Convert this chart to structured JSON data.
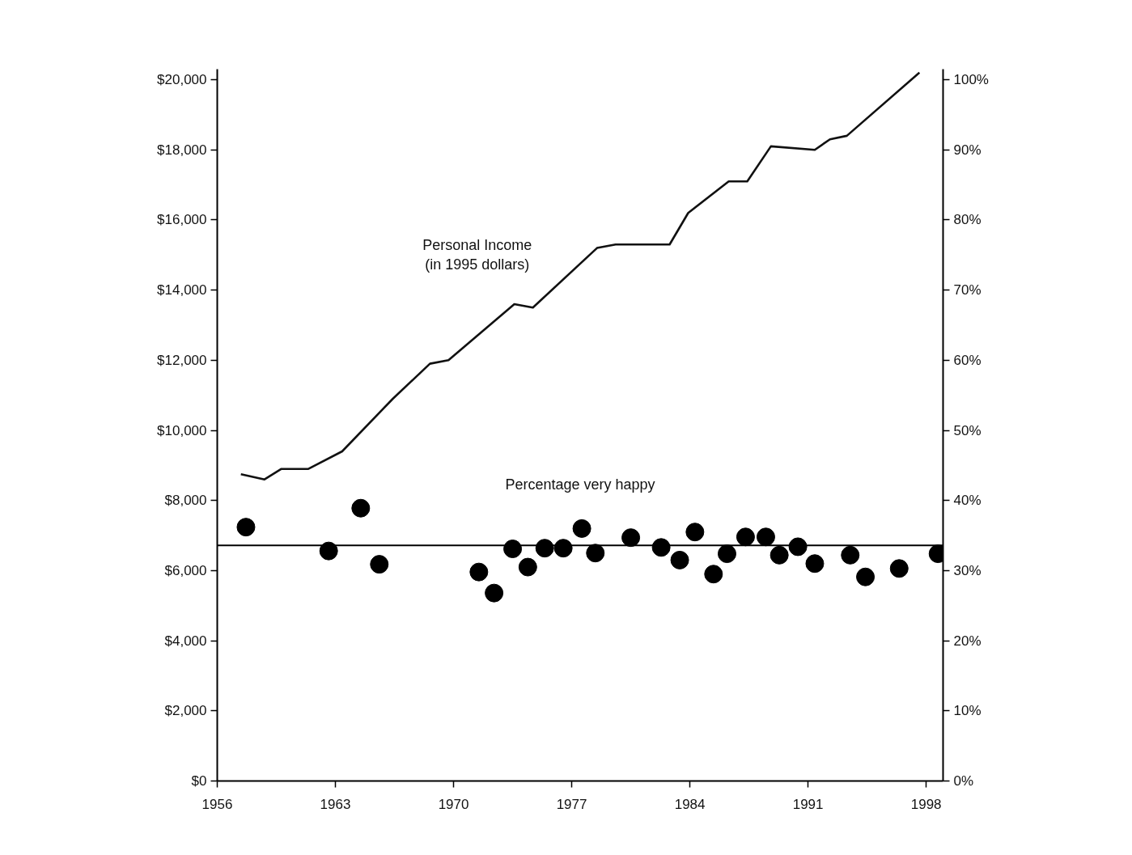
{
  "chart_data": {
    "type": "line",
    "xlim": [
      1956,
      1999
    ],
    "xticks": [
      1956,
      1963,
      1970,
      1977,
      1984,
      1991,
      1998
    ],
    "ylim": [
      0,
      20300
    ],
    "yticks": [
      {
        "value": 0,
        "label": "$0"
      },
      {
        "value": 2000,
        "label": "$2,000"
      },
      {
        "value": 4000,
        "label": "$4,000"
      },
      {
        "value": 6000,
        "label": "$6,000"
      },
      {
        "value": 8000,
        "label": "$8,000"
      },
      {
        "value": 10000,
        "label": "$10,000"
      },
      {
        "value": 12000,
        "label": "$12,000"
      },
      {
        "value": 14000,
        "label": "$14,000"
      },
      {
        "value": 16000,
        "label": "$16,000"
      },
      {
        "value": 18000,
        "label": "$18,000"
      },
      {
        "value": 20000,
        "label": "$20,000"
      }
    ],
    "y2lim": [
      0,
      101.5
    ],
    "y2ticks": [
      {
        "value": 0,
        "label": "0%"
      },
      {
        "value": 10,
        "label": "10%"
      },
      {
        "value": 20,
        "label": "20%"
      },
      {
        "value": 30,
        "label": "30%"
      },
      {
        "value": 40,
        "label": "40%"
      },
      {
        "value": 50,
        "label": "50%"
      },
      {
        "value": 60,
        "label": "60%"
      },
      {
        "value": 70,
        "label": "70%"
      },
      {
        "value": 80,
        "label": "80%"
      },
      {
        "value": 90,
        "label": "90%"
      },
      {
        "value": 100,
        "label": "100%"
      }
    ],
    "grid": false,
    "series": [
      {
        "name": "Personal Income\n(in 1995 dollars)",
        "color": "#111111",
        "line_style": "solid",
        "x": [
          1957.4,
          1958.8,
          1959.8,
          1961.4,
          1963.4,
          1966.4,
          1968.6,
          1969.7,
          1973.6,
          1974.7,
          1978.5,
          1979.6,
          1982.8,
          1983.9,
          1986.3,
          1987.4,
          1988.8,
          1991.4,
          1992.3,
          1993.3,
          1997.6
        ],
        "values": [
          8750,
          8600,
          8900,
          8900,
          9400,
          10900,
          11900,
          12000,
          13600,
          13500,
          15200,
          15300,
          15300,
          16200,
          17100,
          17100,
          18100,
          18000,
          18300,
          18400,
          20200
        ]
      },
      {
        "name": "Percentage very happy",
        "type": "scatter",
        "axis": "y2",
        "marker": "circle",
        "color": "#000000",
        "x": [
          1957.7,
          1962.6,
          1964.5,
          1965.6,
          1971.5,
          1972.4,
          1973.5,
          1974.4,
          1975.4,
          1976.5,
          1977.6,
          1978.4,
          1980.5,
          1982.3,
          1983.4,
          1984.3,
          1985.4,
          1986.2,
          1987.3,
          1988.5,
          1989.3,
          1990.4,
          1991.4,
          1993.5,
          1994.4,
          1996.4,
          1998.7
        ],
        "values": [
          36.2,
          32.8,
          38.9,
          30.9,
          29.8,
          26.8,
          33.1,
          30.5,
          33.2,
          33.2,
          36.0,
          32.5,
          34.7,
          33.3,
          31.5,
          35.5,
          29.5,
          32.4,
          34.8,
          34.8,
          32.2,
          33.4,
          31.0,
          32.2,
          29.1,
          30.3,
          32.4
        ]
      }
    ],
    "ref_lines": [
      {
        "axis": "y2",
        "value": 33.6,
        "label": null,
        "color": "#000000",
        "line_style": "solid"
      }
    ]
  }
}
